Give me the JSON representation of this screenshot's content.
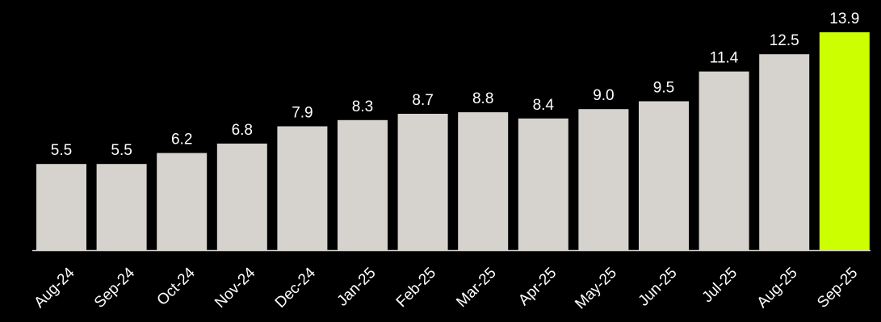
{
  "chart_data": {
    "type": "bar",
    "title": "",
    "xlabel": "",
    "ylabel": "",
    "categories": [
      "Aug-24",
      "Sep-24",
      "Oct-24",
      "Nov-24",
      "Dec-24",
      "Jan-25",
      "Feb-25",
      "Mar-25",
      "Apr-25",
      "May-25",
      "Jun-25",
      "Jul-25",
      "Aug-25",
      "Sep-25"
    ],
    "values": [
      5.5,
      5.5,
      6.2,
      6.8,
      7.9,
      8.3,
      8.7,
      8.8,
      8.4,
      9.0,
      9.5,
      11.4,
      12.5,
      13.9
    ],
    "value_labels": [
      "5.5",
      "5.5",
      "6.2",
      "6.8",
      "7.9",
      "8.3",
      "8.7",
      "8.8",
      "8.4",
      "9.0",
      "9.5",
      "11.4",
      "12.5",
      "13.9"
    ],
    "ylim": [
      0,
      13.9
    ],
    "grid": false,
    "highlight_index": 13,
    "colors": {
      "background": "#000000",
      "bar": "#d6d2cd",
      "highlight": "#ccff00",
      "text": "#ffffff",
      "axis": "#d6d2cd"
    }
  }
}
